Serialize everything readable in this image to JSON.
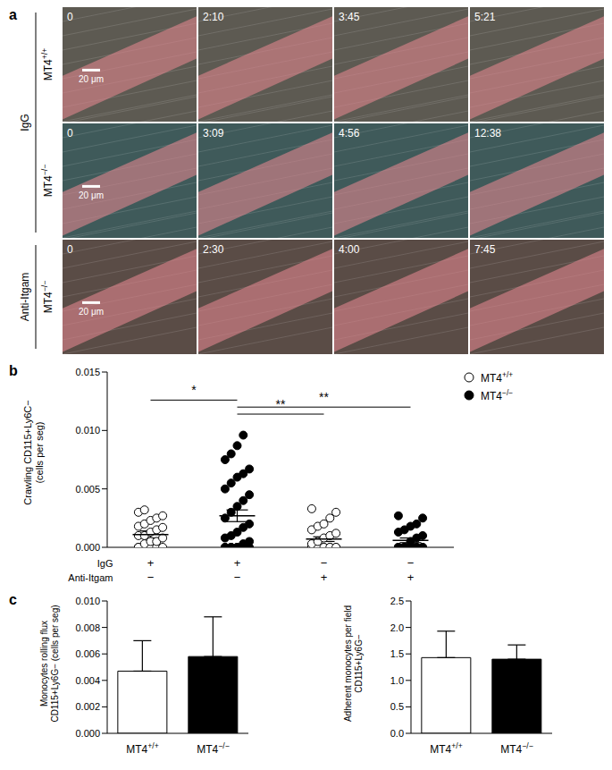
{
  "panels": {
    "a": {
      "label": "a",
      "row_groups": [
        {
          "label": "IgG",
          "rows": [
            0,
            1
          ]
        },
        {
          "label": "Anti-Itgam",
          "rows": [
            2
          ]
        }
      ],
      "rows": [
        {
          "genotype": "MT4+/+",
          "times": [
            "0",
            "2:10",
            "3:45",
            "5:21"
          ],
          "scale_bar": "20 μm"
        },
        {
          "genotype": "MT4−/−",
          "times": [
            "0",
            "3:09",
            "4:56",
            "12:38"
          ],
          "scale_bar": "20 μm"
        },
        {
          "genotype": "MT4−/−",
          "times": [
            "0",
            "2:30",
            "4:00",
            "7:45"
          ],
          "scale_bar": "20 μm"
        }
      ]
    }
  },
  "chart_data": [
    {
      "panel": "b",
      "type": "scatter",
      "y_label": [
        "Crawling CD115+Ly6C−",
        "(cells per seg)"
      ],
      "ylim": [
        0,
        0.015
      ],
      "yticks": [
        {
          "value": 0,
          "label": "0.000"
        },
        0.005,
        {
          "value": 0.01,
          "label": "0.010"
        },
        0.015
      ],
      "legend": "upper right",
      "series": [
        {
          "name": "MT4+/+",
          "color": "#000000",
          "marker": "open"
        },
        {
          "name": "MT4−/−",
          "color": "#000000",
          "marker": "filled"
        }
      ],
      "groups": [
        {
          "series": "MT4+/+",
          "values": [
            0,
            0,
            0,
            0,
            0,
            0,
            0.0003,
            0.0005,
            0.0005,
            0.0008,
            0.001,
            0.001,
            0.0013,
            0.0015,
            0.0017,
            0.0018,
            0.002,
            0.0023,
            0.0025,
            0.0027,
            0.003,
            0.0032
          ],
          "mean": 0.0011,
          "sem": 0.0003
        },
        {
          "series": "MT4−/−",
          "values": [
            0,
            0,
            0,
            0,
            0,
            0,
            0,
            0,
            0.0003,
            0.0005,
            0.0008,
            0.001,
            0.0013,
            0.0017,
            0.002,
            0.0025,
            0.003,
            0.0035,
            0.004,
            0.0045,
            0.005,
            0.0055,
            0.006,
            0.0063,
            0.0067,
            0.0075,
            0.008,
            0.0087,
            0.0096
          ],
          "mean": 0.0027,
          "sem": 0.0005
        },
        {
          "series": "MT4+/+",
          "values": [
            0,
            0,
            0,
            0,
            0,
            0,
            0,
            0,
            0,
            0,
            0.0003,
            0.0005,
            0.0008,
            0.001,
            0.0012,
            0.0015,
            0.0018,
            0.002,
            0.0025,
            0.003,
            0.0033
          ],
          "mean": 0.0007,
          "sem": 0.0002
        },
        {
          "series": "MT4−/−",
          "values": [
            0,
            0,
            0,
            0,
            0,
            0,
            0,
            0,
            0,
            0,
            0,
            0,
            0.0005,
            0.0008,
            0.001,
            0.0013,
            0.0015,
            0.0018,
            0.002,
            0.0025,
            0.0027
          ],
          "mean": 0.0006,
          "sem": 0.0002
        }
      ],
      "treatments": [
        {
          "label": "IgG",
          "marks": [
            "+",
            "+",
            "−",
            "−"
          ]
        },
        {
          "label": "Anti-Itgam",
          "marks": [
            "−",
            "−",
            "+",
            "+"
          ]
        }
      ],
      "comparisons": [
        {
          "groups": [
            1,
            2
          ],
          "label": "*"
        },
        {
          "groups": [
            2,
            3
          ],
          "label": "**"
        },
        {
          "groups": [
            2,
            4
          ],
          "label": "**"
        }
      ]
    },
    {
      "panel": "c",
      "type": "bar",
      "y_label": [
        "Monocytes rolling flux",
        "CD115+Ly6G− (cells per seg)"
      ],
      "categories": [
        "MT4+/+",
        "MT4−/−"
      ],
      "values": [
        0.0047,
        0.0058
      ],
      "errors": [
        0.0023,
        0.003
      ],
      "colors": [
        "#ffffff",
        "#000000"
      ],
      "ylim": [
        0,
        0.01
      ],
      "yticks": [
        {
          "value": 0,
          "label": "0.000"
        },
        0.002,
        0.004,
        0.006,
        0.008,
        {
          "value": 0.01,
          "label": "0.010"
        }
      ]
    },
    {
      "type": "bar",
      "y_label": [
        "Adherent monocytes per field",
        "CD115+Ly6G−"
      ],
      "categories": [
        "MT4+/+",
        "MT4−/−"
      ],
      "values": [
        1.43,
        1.4
      ],
      "errors": [
        0.5,
        0.27
      ],
      "colors": [
        "#ffffff",
        "#000000"
      ],
      "ylim": [
        0,
        2.5
      ],
      "yticks": [
        {
          "value": 0,
          "label": "0.0"
        },
        0.5,
        {
          "value": 1,
          "label": "1.0"
        },
        1.5,
        {
          "value": 2,
          "label": "2.0"
        },
        2.5
      ]
    }
  ]
}
